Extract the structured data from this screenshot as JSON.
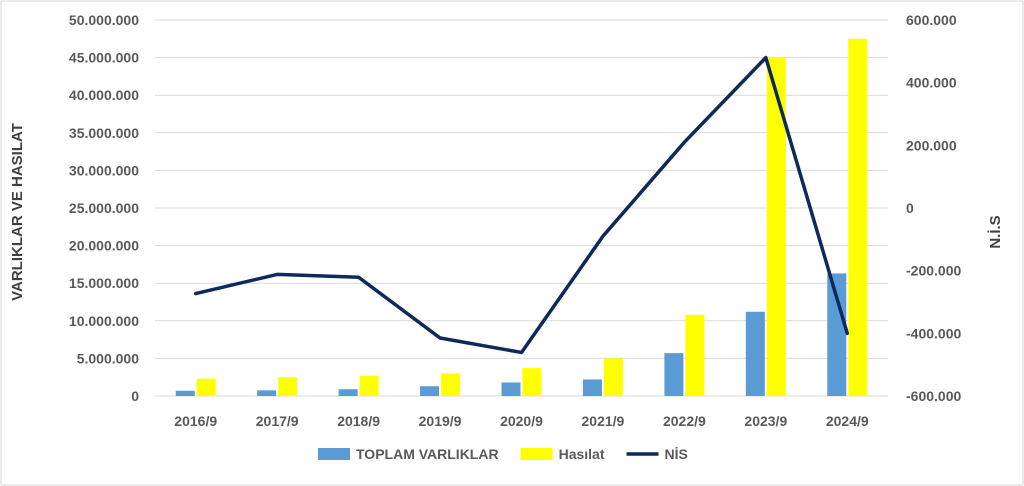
{
  "chart_data": {
    "type": "bar",
    "categories": [
      "2016/9",
      "2017/9",
      "2018/9",
      "2019/9",
      "2020/9",
      "2021/9",
      "2022/9",
      "2023/9",
      "2024/9"
    ],
    "series": [
      {
        "name": "TOPLAM VARLIKLAR",
        "type": "bar",
        "axis": "left",
        "color": "#5B9BD5",
        "values": [
          700000,
          750000,
          900000,
          1300000,
          1800000,
          2200000,
          5700000,
          11200000,
          16300000
        ]
      },
      {
        "name": "Hasılat",
        "type": "bar",
        "axis": "left",
        "color": "#FFFF00",
        "values": [
          2300000,
          2500000,
          2700000,
          3000000,
          3700000,
          5000000,
          10800000,
          45000000,
          47500000
        ]
      },
      {
        "name": "NİS",
        "type": "line",
        "axis": "right",
        "color": "#0D2A5A",
        "values": [
          -273000,
          -212000,
          -221000,
          -415000,
          -461000,
          -90000,
          210000,
          480000,
          -400000
        ]
      }
    ],
    "left_axis": {
      "label": "VARLIKLAR VE HASILAT",
      "ylim": [
        0,
        50000000
      ],
      "ticks": [
        "0",
        "5.000.000",
        "10.000.000",
        "15.000.000",
        "20.000.000",
        "25.000.000",
        "30.000.000",
        "35.000.000",
        "40.000.000",
        "45.000.000",
        "50.000.000"
      ]
    },
    "right_axis": {
      "label": "N.İ.S",
      "ylim": [
        -600000,
        600000
      ],
      "ticks": [
        "-600.000",
        "-400.000",
        "-200.000",
        "0",
        "200.000",
        "400.000",
        "600.000"
      ]
    },
    "grid": true,
    "legend_position": "bottom"
  }
}
